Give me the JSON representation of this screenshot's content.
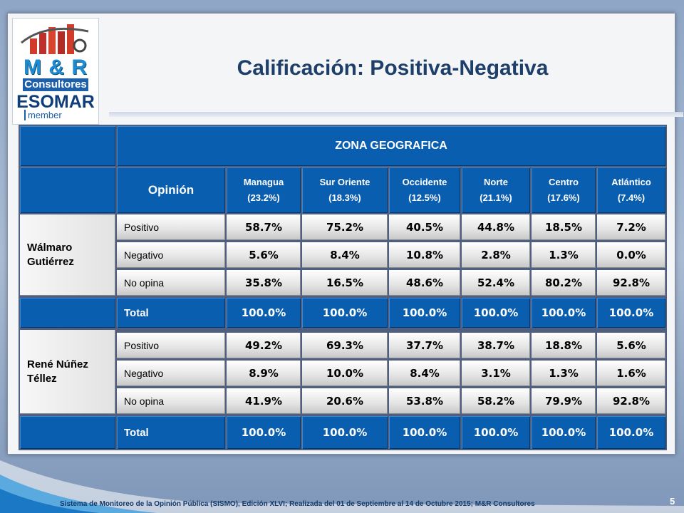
{
  "title": "Calificación: Positiva-Negativa",
  "logo": {
    "mr": "M & R",
    "consultores": "Consultores",
    "esomar": "ESOMAR",
    "member": "member"
  },
  "table": {
    "zone_header": "ZONA GEOGRAFICA",
    "opinion_header": "Opinión",
    "zones": [
      {
        "name": "Managua",
        "pct": "(23.2%)"
      },
      {
        "name": "Sur Oriente",
        "pct": "(18.3%)"
      },
      {
        "name": "Occidente",
        "pct": "(12.5%)"
      },
      {
        "name": "Norte",
        "pct": "(21.1%)"
      },
      {
        "name": "Centro",
        "pct": "(17.6%)"
      },
      {
        "name": "Atlántico",
        "pct": "(7.4%)"
      }
    ],
    "groups": [
      {
        "person": [
          "Wálmaro",
          "Gutiérrez"
        ],
        "rows": [
          {
            "label": "Positivo",
            "values": [
              "58.7%",
              "75.2%",
              "40.5%",
              "44.8%",
              "18.5%",
              "7.2%"
            ]
          },
          {
            "label": "Negativo",
            "values": [
              "5.6%",
              "8.4%",
              "10.8%",
              "2.8%",
              "1.3%",
              "0.0%"
            ]
          },
          {
            "label": "No opina",
            "values": [
              "35.8%",
              "16.5%",
              "48.6%",
              "52.4%",
              "80.2%",
              "92.8%"
            ]
          }
        ],
        "total": {
          "label": "Total",
          "values": [
            "100.0%",
            "100.0%",
            "100.0%",
            "100.0%",
            "100.0%",
            "100.0%"
          ]
        }
      },
      {
        "person": [
          "René Núñez",
          "Téllez"
        ],
        "rows": [
          {
            "label": "Positivo",
            "values": [
              "49.2%",
              "69.3%",
              "37.7%",
              "38.7%",
              "18.8%",
              "5.6%"
            ]
          },
          {
            "label": "Negativo",
            "values": [
              "8.9%",
              "10.0%",
              "8.4%",
              "3.1%",
              "1.3%",
              "1.6%"
            ]
          },
          {
            "label": "No opina",
            "values": [
              "41.9%",
              "20.6%",
              "53.8%",
              "58.2%",
              "79.9%",
              "92.8%"
            ]
          }
        ],
        "total": {
          "label": "Total",
          "values": [
            "100.0%",
            "100.0%",
            "100.0%",
            "100.0%",
            "100.0%",
            "100.0%"
          ]
        }
      }
    ]
  },
  "footer": "Sistema de Monitoreo de la Opinión Pública (SISMO), Edición XLVI; Realizada del 01 de Septiembre al 14 de Octubre 2015; M&R Consultores",
  "page_number": "5",
  "colors": {
    "header_blue": "#0a5eb0",
    "title_text": "#1f3f6b"
  }
}
